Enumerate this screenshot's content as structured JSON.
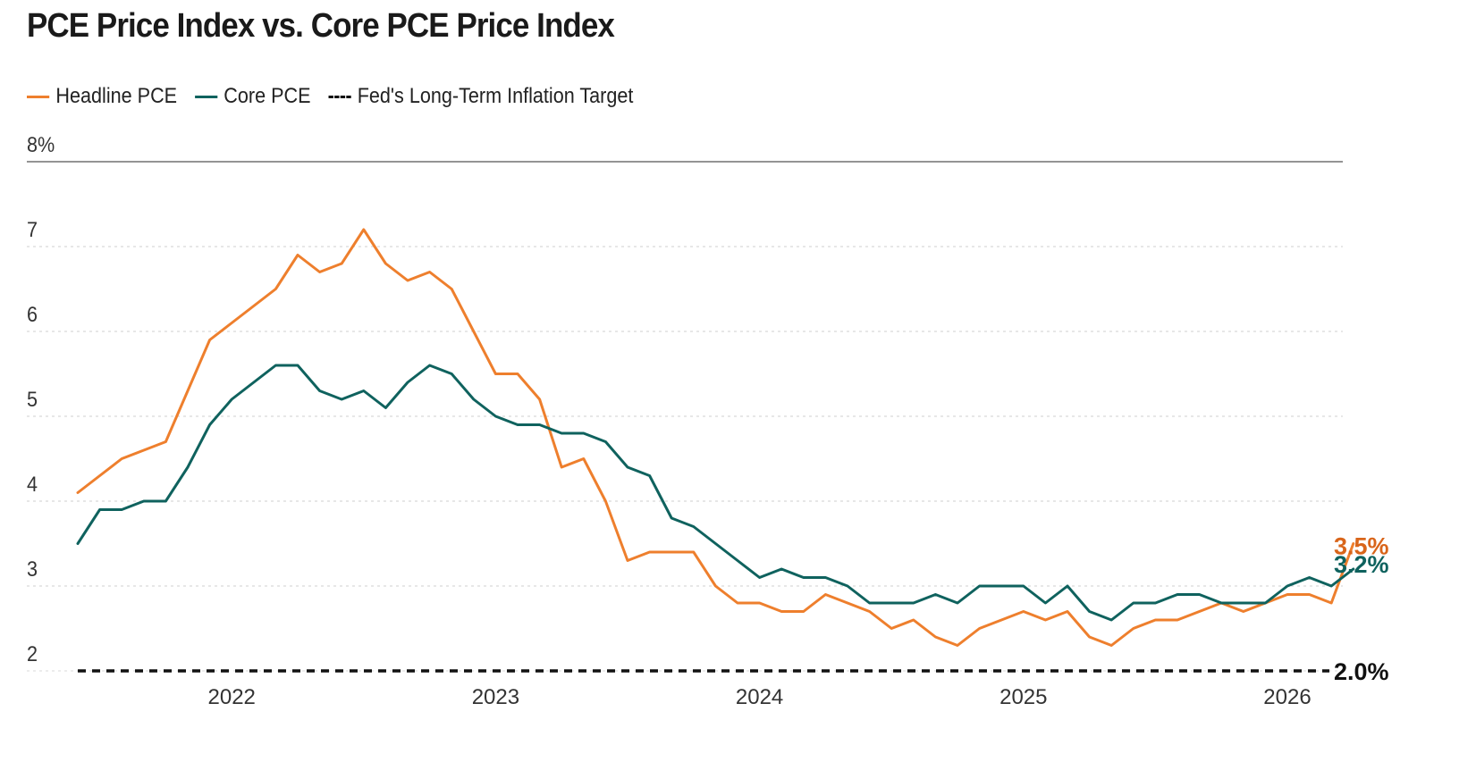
{
  "title": "PCE Price Index vs. Core PCE Price Index",
  "legend": [
    {
      "label": "Headline PCE",
      "style": "solid",
      "color": "#ee7f2d"
    },
    {
      "label": "Core PCE",
      "style": "solid",
      "color": "#0f625e"
    },
    {
      "label": "Fed's Long-Term Inflation Target",
      "style": "dashed",
      "color": "#111111"
    }
  ],
  "chart_data": {
    "type": "line",
    "title": "PCE Price Index vs. Core PCE Price Index",
    "xlabel": "",
    "ylabel": "",
    "ylim": [
      2,
      8
    ],
    "yticks": [
      "8%",
      "7",
      "6",
      "5",
      "4",
      "3",
      "2"
    ],
    "xticks": [
      "2022",
      "2023",
      "2024",
      "2025",
      "2026"
    ],
    "grid": "horizontal dotted",
    "legend_position": "top-left",
    "x_start": "2021-06",
    "x_end": "2026-03",
    "series": [
      {
        "name": "Headline PCE",
        "color": "#ee7f2d",
        "end_label": "3.5%",
        "values": [
          4.1,
          4.3,
          4.5,
          4.6,
          4.7,
          5.3,
          5.9,
          6.1,
          6.3,
          6.5,
          6.9,
          6.7,
          6.8,
          7.2,
          6.8,
          6.6,
          6.7,
          6.5,
          6.0,
          5.5,
          5.5,
          5.2,
          4.4,
          4.5,
          4.0,
          3.3,
          3.4,
          3.4,
          3.4,
          3.0,
          2.8,
          2.8,
          2.7,
          2.7,
          2.9,
          2.8,
          2.7,
          2.5,
          2.6,
          2.4,
          2.3,
          2.5,
          2.6,
          2.7,
          2.6,
          2.7,
          2.4,
          2.3,
          2.5,
          2.6,
          2.6,
          2.7,
          2.8,
          2.7,
          2.8,
          2.9,
          2.9,
          2.8,
          3.5
        ]
      },
      {
        "name": "Core PCE",
        "color": "#0f625e",
        "end_label": "3.2%",
        "values": [
          3.5,
          3.9,
          3.9,
          4.0,
          4.0,
          4.4,
          4.9,
          5.2,
          5.4,
          5.6,
          5.6,
          5.3,
          5.2,
          5.3,
          5.1,
          5.4,
          5.6,
          5.5,
          5.2,
          5.0,
          4.9,
          4.9,
          4.8,
          4.8,
          4.7,
          4.4,
          4.3,
          3.8,
          3.7,
          3.5,
          3.3,
          3.1,
          3.2,
          3.1,
          3.1,
          3.0,
          2.8,
          2.8,
          2.8,
          2.9,
          2.8,
          3.0,
          3.0,
          3.0,
          2.8,
          3.0,
          2.7,
          2.6,
          2.8,
          2.8,
          2.9,
          2.9,
          2.8,
          2.8,
          2.8,
          3.0,
          3.1,
          3.0,
          3.2
        ]
      }
    ],
    "reference_line": {
      "name": "Fed's Long-Term Inflation Target",
      "value": 2.0,
      "label": "2.0%",
      "style": "dashed"
    }
  }
}
